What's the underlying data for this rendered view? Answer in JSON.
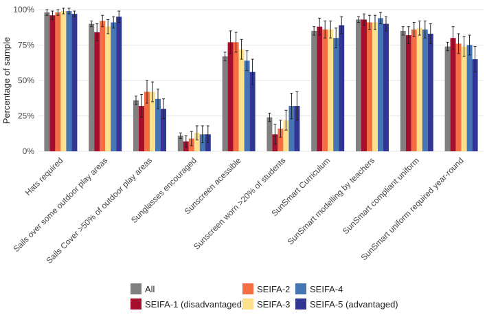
{
  "chart_data": {
    "type": "bar",
    "y_label": "Percentage of sample",
    "categories": [
      "Hats required",
      "Sails over some outdoor play areas",
      "Sails Cover >50% of outdoor play areas",
      "Sunglasses encouraged",
      "Sunscreen acessible",
      "Sunscreen worn >20% of students",
      "SunSmart Curriculum",
      "SunSmart modelling by teachers",
      "SunSmart compliant uniform",
      "SunSmart uniform required year-round"
    ],
    "series": [
      {
        "name": "All",
        "color": "#808080",
        "values": [
          98,
          90,
          36,
          11,
          67,
          24,
          85,
          93,
          85,
          74
        ],
        "errors": [
          2,
          2,
          3,
          2,
          3,
          3,
          3,
          2,
          3,
          3
        ]
      },
      {
        "name": "SEIFA-1 (disadvantaged)",
        "color": "#a50f2d",
        "values": [
          96,
          84,
          32,
          7,
          77,
          12,
          88,
          93,
          82,
          80
        ],
        "errors": [
          3,
          6,
          8,
          4,
          8,
          7,
          6,
          4,
          6,
          8
        ]
      },
      {
        "name": "SEIFA-2",
        "color": "#f46d43",
        "values": [
          98,
          92,
          42,
          9,
          77,
          16,
          86,
          91,
          86,
          76
        ],
        "errors": [
          2,
          4,
          8,
          5,
          7,
          6,
          6,
          5,
          5,
          7
        ]
      },
      {
        "name": "SEIFA-3",
        "color": "#fee08b",
        "values": [
          99,
          88,
          42,
          13,
          72,
          22,
          86,
          91,
          87,
          74
        ],
        "errors": [
          2,
          5,
          7,
          5,
          7,
          7,
          6,
          5,
          5,
          7
        ]
      },
      {
        "name": "SEIFA-4",
        "color": "#4575b4",
        "values": [
          99,
          91,
          37,
          12,
          64,
          32,
          80,
          94,
          86,
          75
        ],
        "errors": [
          2,
          4,
          7,
          6,
          7,
          9,
          7,
          4,
          6,
          7
        ]
      },
      {
        "name": "SEIFA-5 (advantaged)",
        "color": "#313695",
        "values": [
          97,
          95,
          30,
          12,
          56,
          32,
          89,
          90,
          83,
          65
        ],
        "errors": [
          2,
          4,
          7,
          6,
          9,
          10,
          6,
          5,
          7,
          9
        ]
      }
    ],
    "ylim": [
      0,
      100
    ],
    "yticks": [
      {
        "value": 0,
        "label": "0%"
      },
      {
        "value": 25,
        "label": "25%"
      },
      {
        "value": 50,
        "label": "50%"
      },
      {
        "value": 75,
        "label": "75%"
      },
      {
        "value": 100,
        "label": "100%"
      }
    ],
    "grid": true
  }
}
